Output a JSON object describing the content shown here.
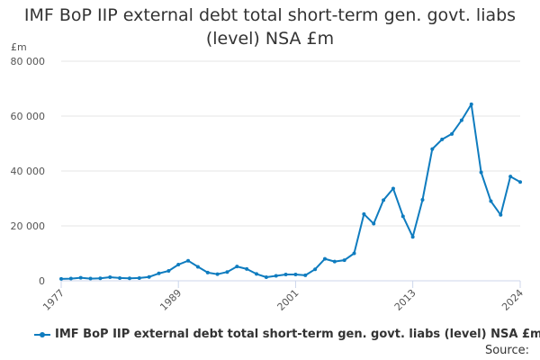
{
  "chart_data": {
    "type": "line",
    "title_lines": [
      "IMF BoP IIP external debt total short-term gen. govt. liabs",
      "(level) NSA £m"
    ],
    "y_unit": "£m",
    "ylim": [
      0,
      80000
    ],
    "y_ticks": [
      0,
      20000,
      40000,
      60000,
      80000
    ],
    "y_tick_labels": [
      "0",
      "20 000",
      "40 000",
      "60 000",
      "80 000"
    ],
    "xlim": [
      1977,
      2024
    ],
    "x_ticks": [
      1977,
      1989,
      2001,
      2013,
      2024
    ],
    "x_tick_labels": [
      "1977",
      "1989",
      "2001",
      "2013",
      "2024"
    ],
    "grid": "horizontal",
    "legend": "bottom",
    "series": [
      {
        "name": "IMF BoP IIP external debt total short-term gen. govt. liabs (level) NSA £m",
        "color": "#0f7cbf",
        "x": [
          1977,
          1978,
          1979,
          1980,
          1981,
          1982,
          1983,
          1984,
          1985,
          1986,
          1987,
          1988,
          1989,
          1990,
          1991,
          1992,
          1993,
          1994,
          1995,
          1996,
          1997,
          1998,
          1999,
          2000,
          2001,
          2002,
          2003,
          2004,
          2005,
          2006,
          2007,
          2008,
          2009,
          2010,
          2011,
          2012,
          2013,
          2014,
          2015,
          2016,
          2017,
          2018,
          2019,
          2020,
          2021,
          2022,
          2023,
          2024
        ],
        "values": [
          700,
          800,
          1100,
          800,
          900,
          1300,
          1000,
          900,
          1000,
          1400,
          2700,
          3600,
          5900,
          7300,
          5100,
          3000,
          2400,
          3200,
          5200,
          4300,
          2500,
          1300,
          1800,
          2300,
          2300,
          2000,
          4200,
          8000,
          7000,
          7500,
          10000,
          24300,
          20800,
          29400,
          33600,
          23500,
          16000,
          29500,
          48000,
          51500,
          53500,
          58500,
          64300,
          39500,
          29000,
          24000,
          38000,
          36000
        ]
      }
    ],
    "source_label": "Source:"
  }
}
